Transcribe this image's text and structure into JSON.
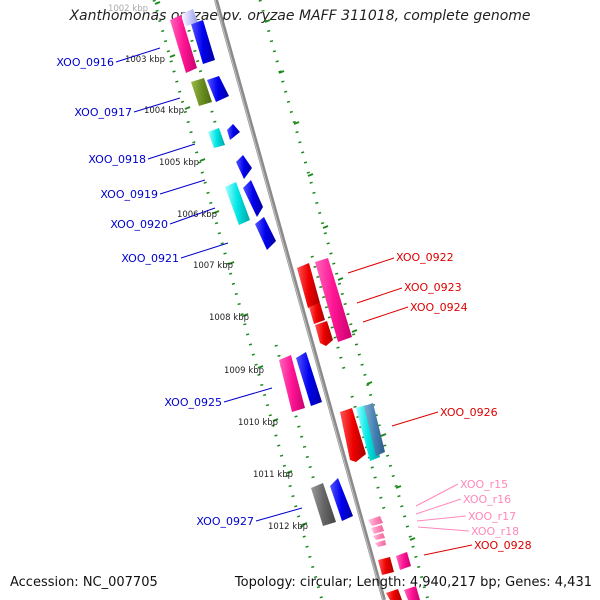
{
  "title": "Xanthomonas oryzae pv. oryzae MAFF 311018, complete genome",
  "accession": "Accession: NC_007705",
  "topology": "Topology: circular; Length: 4,940,217 bp; Genes: 4,431",
  "colors": {
    "backbone": "#8a8a8a",
    "ticks": "#1f8a1f",
    "left_labels": "#0000cc",
    "right_labels": "#dd0000",
    "rna_labels": "#ff88bb"
  },
  "kbp_ticks": [
    {
      "label": "1002 kbp",
      "faded": true
    },
    {
      "label": "1003 kbp"
    },
    {
      "label": "1004 kbp"
    },
    {
      "label": "1005 kbp"
    },
    {
      "label": "1006 kbp"
    },
    {
      "label": "1007 kbp"
    },
    {
      "label": "1008 kbp"
    },
    {
      "label": "1009 kbp"
    },
    {
      "label": "1010 kbp"
    },
    {
      "label": "1011 kbp"
    },
    {
      "label": "1012 kbp"
    }
  ],
  "left_gene_labels": [
    "XOO_0916",
    "XOO_0917",
    "XOO_0918",
    "XOO_0919",
    "XOO_0920",
    "XOO_0921",
    "XOO_0925",
    "XOO_0927"
  ],
  "right_gene_labels": [
    "XOO_0922",
    "XOO_0923",
    "XOO_0924",
    "XOO_0926",
    "XOO_0928"
  ],
  "rna_gene_labels": [
    "XOO_r15",
    "XOO_r16",
    "XOO_r17",
    "XOO_r18"
  ]
}
